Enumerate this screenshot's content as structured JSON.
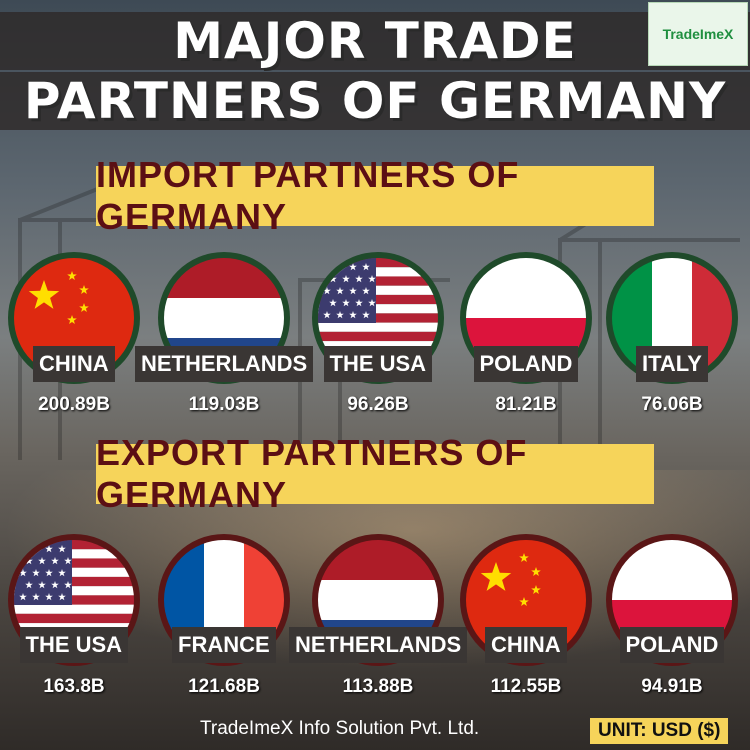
{
  "title": {
    "line1": "MAJOR TRADE",
    "line2": "PARTNERS OF GERMANY"
  },
  "logo": {
    "text": "TradeImeX"
  },
  "imports": {
    "heading": "IMPORT PARTNERS OF GERMANY",
    "items": [
      {
        "country": "CHINA",
        "value": "200.89B",
        "flag": "china-flag-icon"
      },
      {
        "country": "NETHERLANDS",
        "value": "119.03B",
        "flag": "netherlands-flag-icon"
      },
      {
        "country": "THE USA",
        "value": "96.26B",
        "flag": "usa-flag-icon"
      },
      {
        "country": "POLAND",
        "value": "81.21B",
        "flag": "poland-flag-icon"
      },
      {
        "country": "ITALY",
        "value": "76.06B",
        "flag": "italy-flag-icon"
      }
    ]
  },
  "exports": {
    "heading": "EXPORT PARTNERS OF GERMANY",
    "items": [
      {
        "country": "THE USA",
        "value": "163.8B",
        "flag": "usa-flag-icon"
      },
      {
        "country": "FRANCE",
        "value": "121.68B",
        "flag": "france-flag-icon"
      },
      {
        "country": "NETHERLANDS",
        "value": "113.88B",
        "flag": "netherlands-flag-icon"
      },
      {
        "country": "CHINA",
        "value": "112.55B",
        "flag": "china-flag-icon"
      },
      {
        "country": "POLAND",
        "value": "94.91B",
        "flag": "poland-flag-icon"
      }
    ]
  },
  "footer": {
    "company": "TradeImeX Info Solution Pvt. Ltd.",
    "unit": "UNIT: USD ($)"
  },
  "colors": {
    "heading_bg": "#f6d45a",
    "heading_text": "#5b0f14",
    "import_ring": "#1f4a2a",
    "export_ring": "#5a1616"
  }
}
